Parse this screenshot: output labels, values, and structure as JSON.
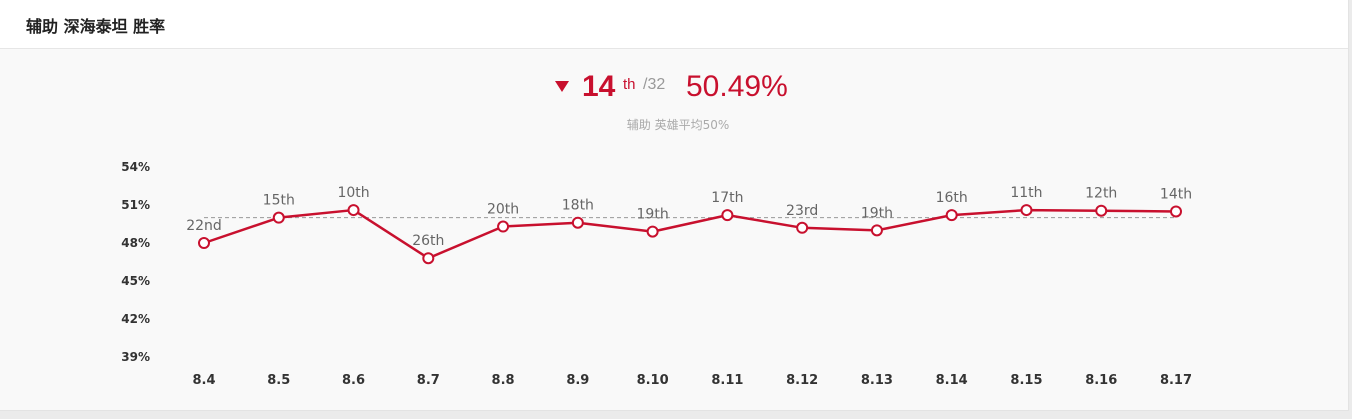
{
  "header": {
    "title": "辅助 深海泰坦 胜率"
  },
  "summary": {
    "trend_icon": "down-arrow-icon",
    "rank": "14",
    "rank_suffix": "th",
    "rank_total": "/32",
    "win_rate": "50.49%",
    "subtitle": "辅助 英雄平均50%"
  },
  "colors": {
    "accent": "#c8102e",
    "reference_line": "#999999",
    "muted_text": "#aaaaaa"
  },
  "chart_data": {
    "type": "line",
    "categories": [
      "8.4",
      "8.5",
      "8.6",
      "8.7",
      "8.8",
      "8.9",
      "8.10",
      "8.11",
      "8.12",
      "8.13",
      "8.14",
      "8.15",
      "8.16",
      "8.17"
    ],
    "series": [
      {
        "values": [
          48.0,
          50.0,
          50.6,
          46.8,
          49.3,
          49.6,
          48.9,
          50.2,
          49.2,
          49.0,
          50.2,
          50.6,
          50.55,
          50.49
        ],
        "labels": [
          "22nd",
          "15th",
          "10th",
          "26th",
          "20th",
          "18th",
          "19th",
          "17th",
          "23rd",
          "19th",
          "16th",
          "11th",
          "12th",
          "14th"
        ]
      }
    ],
    "reference_line": 50,
    "ylim": [
      39,
      54
    ],
    "yticks": [
      54,
      51,
      48,
      45,
      42,
      39
    ],
    "ytick_labels": [
      "54%",
      "51%",
      "48%",
      "45%",
      "42%",
      "39%"
    ],
    "grid": false,
    "legend": "none"
  }
}
